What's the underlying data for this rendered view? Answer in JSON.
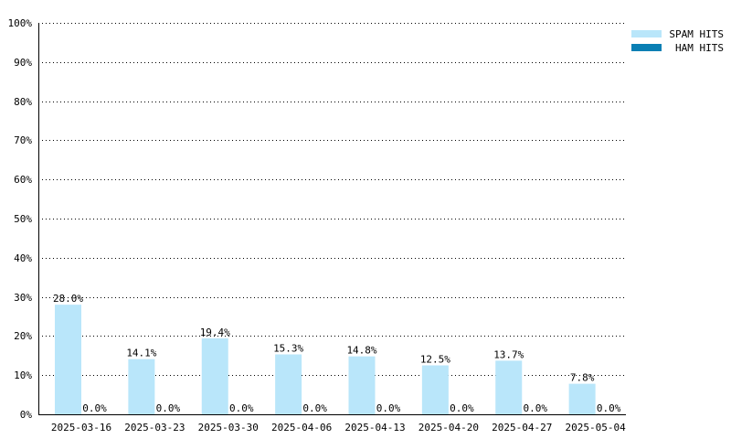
{
  "chart_data": {
    "type": "bar",
    "title": "",
    "xlabel": "",
    "ylabel": "",
    "ylim": [
      0,
      100
    ],
    "y_tick_values": [
      0,
      10,
      20,
      30,
      40,
      50,
      60,
      70,
      80,
      90,
      100
    ],
    "y_tick_labels": [
      "0%",
      "10%",
      "20%",
      "30%",
      "40%",
      "50%",
      "60%",
      "70%",
      "80%",
      "90%",
      "100%"
    ],
    "grid": true,
    "legend_position": "top-right",
    "categories": [
      "2025-03-16",
      "2025-03-23",
      "2025-03-30",
      "2025-04-06",
      "2025-04-13",
      "2025-04-20",
      "2025-04-27",
      "2025-05-04"
    ],
    "series": [
      {
        "name": "SPAM HITS",
        "color": "#b9e6fa",
        "values": [
          28.0,
          14.1,
          19.4,
          15.3,
          14.8,
          12.5,
          13.7,
          7.8
        ],
        "labels": [
          "28.0%",
          "14.1%",
          "19.4%",
          "15.3%",
          "14.8%",
          "12.5%",
          "13.7%",
          "7.8%"
        ]
      },
      {
        "name": "HAM HITS",
        "color": "#0a7fb4",
        "values": [
          0.0,
          0.0,
          0.0,
          0.0,
          0.0,
          0.0,
          0.0,
          0.0
        ],
        "labels": [
          "0.0%",
          "0.0%",
          "0.0%",
          "0.0%",
          "0.0%",
          "0.0%",
          "0.0%",
          "0.0%"
        ]
      }
    ]
  }
}
